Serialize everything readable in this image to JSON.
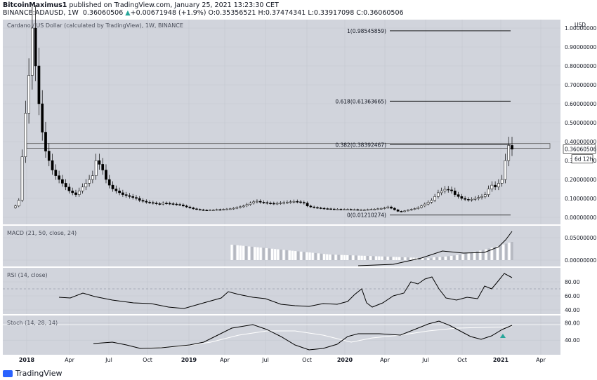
{
  "header": {
    "publisher": "BitcoinMaximus1",
    "published_text": " published on TradingView.com, January 25, 2021 13:23:30 CET",
    "symbol": "BINANCE:ADAUSD, 1W",
    "last": "0.36060506",
    "change_arrow": "▲",
    "change": "+0.00671948 (+1.9%)",
    "o_label": "O:",
    "o_value": "0.35356521",
    "h_label": "H:",
    "h_value": "0.37474341",
    "l_label": "L:",
    "l_value": "0.33917098",
    "c_label": "C:",
    "c_value": "0.36060506"
  },
  "footer": {
    "brand": "TradingView"
  },
  "colors": {
    "pane_bg": "#d1d4dc",
    "up": "#ffffff",
    "down": "#000000",
    "grid": "#c4c7cf",
    "line": "#000000",
    "signal": "#ffffff",
    "marker": "#26a69a"
  },
  "chart_data": [
    {
      "type": "candlestick",
      "title": "Cardano / US Dollar (calculated by TradingView), 1W, BINANCE",
      "unit_label": "USD",
      "scale": "log",
      "x_ticks": [
        "2018",
        "Apr",
        "Jul",
        "Oct",
        "2019",
        "Apr",
        "Jul",
        "Oct",
        "2020",
        "Apr",
        "Jul",
        "Oct",
        "2021",
        "Apr"
      ],
      "y_ticks": [
        "1.00000000",
        "0.90000000",
        "0.80000000",
        "0.70000000",
        "0.60000000",
        "0.50000000",
        "0.40000000",
        "0.30000000",
        "0.20000000",
        "0.10000000",
        "0.00000000"
      ],
      "y_range": [
        0.0,
        1.05
      ],
      "last_price_label": "0.36060506",
      "countdown_label": "6d 12h",
      "fib_levels": [
        {
          "label": "1(0.98545859)",
          "value": 0.98545859
        },
        {
          "label": "0.618(0.61363665)",
          "value": 0.61363665
        },
        {
          "label": "0.382(0.38392467)",
          "value": 0.38392467
        },
        {
          "label": "0(0.01210274)",
          "value": 0.01210274
        }
      ],
      "resistance_zone": [
        0.365,
        0.39
      ],
      "close_series_approx": [
        0.06,
        0.09,
        0.32,
        0.55,
        0.75,
        1.0,
        0.8,
        0.6,
        0.45,
        0.35,
        0.3,
        0.25,
        0.22,
        0.2,
        0.18,
        0.16,
        0.14,
        0.13,
        0.12,
        0.14,
        0.16,
        0.18,
        0.2,
        0.22,
        0.3,
        0.28,
        0.25,
        0.2,
        0.17,
        0.15,
        0.14,
        0.13,
        0.12,
        0.115,
        0.11,
        0.105,
        0.1,
        0.09,
        0.085,
        0.08,
        0.078,
        0.075,
        0.072,
        0.07,
        0.075,
        0.074,
        0.072,
        0.07,
        0.068,
        0.066,
        0.06,
        0.055,
        0.05,
        0.045,
        0.042,
        0.04,
        0.038,
        0.037,
        0.038,
        0.039,
        0.041,
        0.04,
        0.042,
        0.044,
        0.045,
        0.048,
        0.052,
        0.056,
        0.06,
        0.068,
        0.075,
        0.082,
        0.085,
        0.08,
        0.078,
        0.075,
        0.074,
        0.072,
        0.074,
        0.076,
        0.078,
        0.08,
        0.082,
        0.084,
        0.082,
        0.079,
        0.075,
        0.06,
        0.055,
        0.052,
        0.05,
        0.048,
        0.046,
        0.045,
        0.044,
        0.043,
        0.043,
        0.042,
        0.042,
        0.042,
        0.041,
        0.041,
        0.04,
        0.04,
        0.04,
        0.041,
        0.042,
        0.043,
        0.045,
        0.047,
        0.05,
        0.055,
        0.048,
        0.04,
        0.032,
        0.03,
        0.034,
        0.038,
        0.042,
        0.046,
        0.052,
        0.06,
        0.07,
        0.08,
        0.09,
        0.11,
        0.13,
        0.14,
        0.148,
        0.145,
        0.14,
        0.12,
        0.11,
        0.1,
        0.095,
        0.092,
        0.095,
        0.1,
        0.105,
        0.11,
        0.12,
        0.15,
        0.17,
        0.16,
        0.18,
        0.2,
        0.3,
        0.38,
        0.36
      ]
    },
    {
      "type": "histogram",
      "title": "MACD (21, 50, close, 24)",
      "y_ticks": [
        "0.05000000",
        "0.00000000"
      ]
    },
    {
      "type": "line",
      "title": "RSI (14, close)",
      "y_ticks": [
        "80.00",
        "60.00",
        "40.00"
      ]
    },
    {
      "type": "line",
      "title": "Stoch (14, 28, 14)",
      "y_ticks": [
        "80.00",
        "40.00"
      ]
    }
  ]
}
